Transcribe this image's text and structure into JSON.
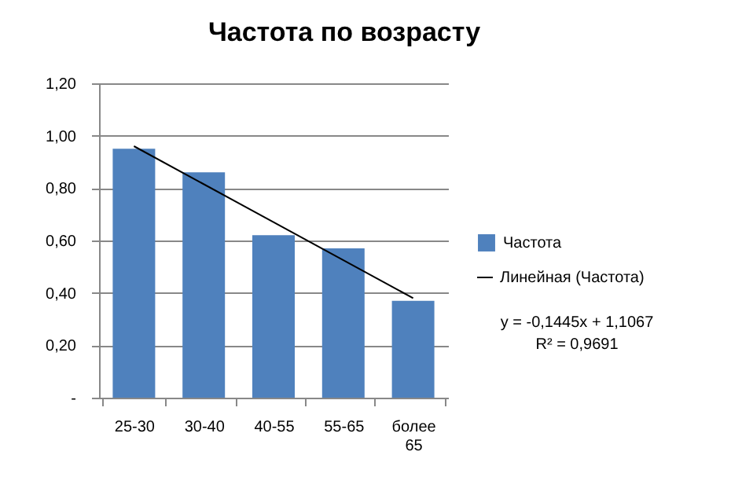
{
  "chart_data": {
    "type": "bar",
    "title": "Частота по возрасту",
    "categories": [
      "25-30",
      "30-40",
      "40-55",
      "55-65",
      "более 65"
    ],
    "series": [
      {
        "name": "Частота",
        "color": "#4f81bd",
        "values": [
          0.95,
          0.86,
          0.62,
          0.57,
          0.37
        ]
      },
      {
        "name": "Линейная (Частота)",
        "type": "line",
        "color": "#000000",
        "x": [
          "25-30",
          "более 65"
        ],
        "values": [
          0.96,
          0.38
        ]
      }
    ],
    "ylim": [
      0,
      1.2
    ],
    "yticks": [
      {
        "value": 0,
        "label": "-"
      },
      {
        "value": 0.2,
        "label": "0,20"
      },
      {
        "value": 0.4,
        "label": "0,40"
      },
      {
        "value": 0.6,
        "label": "0,60"
      },
      {
        "value": 0.8,
        "label": "0,80"
      },
      {
        "value": 1,
        "label": "1,00"
      },
      {
        "value": 1.2,
        "label": "1,20"
      }
    ],
    "grid": "y",
    "legend": "right",
    "annotations": [
      "y = -0,1445x + 1,1067",
      "R² = 0,9691"
    ]
  }
}
